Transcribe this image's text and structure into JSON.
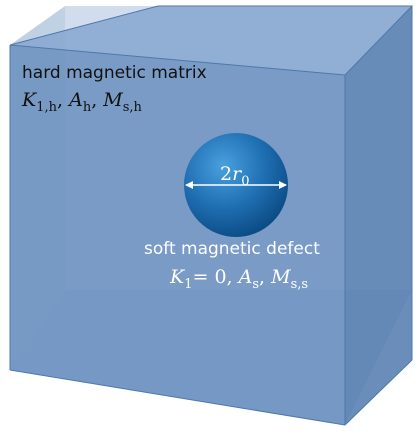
{
  "matrix": {
    "label": "hard magnetic matrix",
    "params": {
      "k_sym": "K",
      "k_sub": "1,h",
      "a_sym": "A",
      "a_sub": "h",
      "m_sym": "M",
      "m_sub": "s,h",
      "sep": ", "
    }
  },
  "defect": {
    "diameter_label": {
      "prefix": "2",
      "sym": "r",
      "sub": "0"
    },
    "label": "soft magnetic defect",
    "params": {
      "k_sym": "K",
      "k_sub": "1",
      "k_val": "= 0",
      "a_sym": "A",
      "a_sub": "s",
      "m_sym": "M",
      "m_sub": "s,s",
      "sep": ", "
    }
  },
  "colors": {
    "cube_front": "#6f94c1",
    "cube_top": "#86a7cf",
    "cube_side": "#5d84b3",
    "cube_back": "#7c9ecb",
    "edge": "#4e78aa",
    "sphere_light": "#3d8fd0",
    "sphere_dark": "#0c4f88",
    "text_dark": "#111111",
    "text_light": "#ffffff"
  }
}
